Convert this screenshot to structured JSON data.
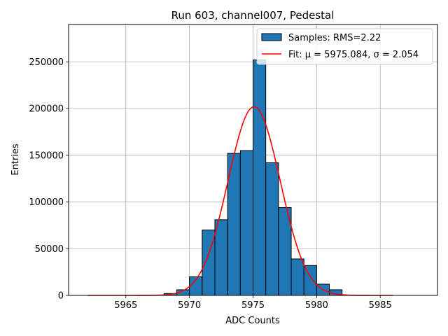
{
  "chart_data": {
    "type": "bar",
    "title": "Run 603, channel007, Pedestal",
    "xlabel": "ADC Counts",
    "ylabel": "Entries",
    "xlim": [
      5960.5,
      5989.5
    ],
    "ylim": [
      0,
      290000
    ],
    "xticks": [
      5965,
      5970,
      5975,
      5980,
      5985
    ],
    "yticks": [
      0,
      50000,
      100000,
      150000,
      200000,
      250000
    ],
    "grid": true,
    "legend_position": "top-right",
    "bins": {
      "edges": [
        5968,
        5969,
        5970,
        5971,
        5972,
        5973,
        5974,
        5975,
        5976,
        5977,
        5978,
        5979,
        5980,
        5981,
        5982
      ],
      "values": [
        2000,
        6000,
        20000,
        70000,
        81000,
        152000,
        155000,
        252000,
        142000,
        94000,
        39000,
        32000,
        12000,
        6000
      ]
    },
    "series": [
      {
        "name": "Samples: RMS=2.22",
        "kind": "histogram",
        "color": "#1f77b4",
        "edgecolor": "#000000"
      },
      {
        "name": "Fit: μ = 5975.084, σ = 2.054",
        "kind": "line",
        "color": "#ff0000",
        "mu": 5975.084,
        "sigma": 2.054,
        "amplitude": 202000,
        "x_range": [
          5962,
          5986
        ]
      }
    ]
  }
}
